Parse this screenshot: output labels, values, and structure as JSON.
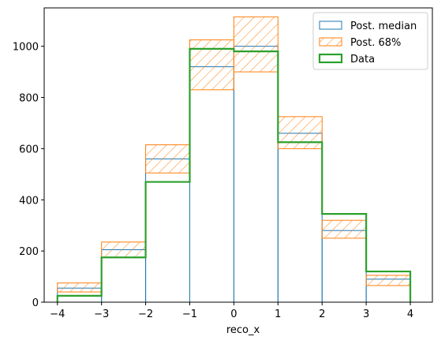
{
  "chart_data": {
    "type": "histogram",
    "xlabel": "reco_x",
    "ylabel": "",
    "xlim": [
      -4.3,
      4.5
    ],
    "ylim": [
      0,
      1150
    ],
    "x_ticks": [
      -4,
      -3,
      -2,
      -1,
      0,
      1,
      2,
      3,
      4
    ],
    "x_tick_labels": [
      "−4",
      "−3",
      "−2",
      "−1",
      "0",
      "1",
      "2",
      "3",
      "4"
    ],
    "y_ticks": [
      0,
      200,
      400,
      600,
      800,
      1000
    ],
    "y_tick_labels": [
      "0",
      "200",
      "400",
      "600",
      "800",
      "1000"
    ],
    "bin_edges": [
      -4,
      -3,
      -2,
      -1,
      0,
      1,
      2,
      3,
      4
    ],
    "series": [
      {
        "name": "Post. median",
        "kind": "step-outline",
        "color": "#1f77b4",
        "values": [
          55,
          205,
          560,
          920,
          1000,
          660,
          280,
          90
        ]
      },
      {
        "name": "Post. 68%",
        "kind": "hatched-band",
        "color": "#ff7f0e",
        "low": [
          40,
          175,
          505,
          830,
          900,
          600,
          250,
          65
        ],
        "high": [
          75,
          235,
          615,
          1025,
          1115,
          725,
          320,
          105
        ]
      },
      {
        "name": "Data",
        "kind": "step-outline",
        "color": "#2ca02c",
        "values": [
          25,
          175,
          470,
          990,
          980,
          625,
          345,
          120
        ]
      }
    ],
    "legend": {
      "placement": "top-right",
      "entries": [
        "Post. median",
        "Post. 68%",
        "Data"
      ]
    },
    "grid": false
  }
}
